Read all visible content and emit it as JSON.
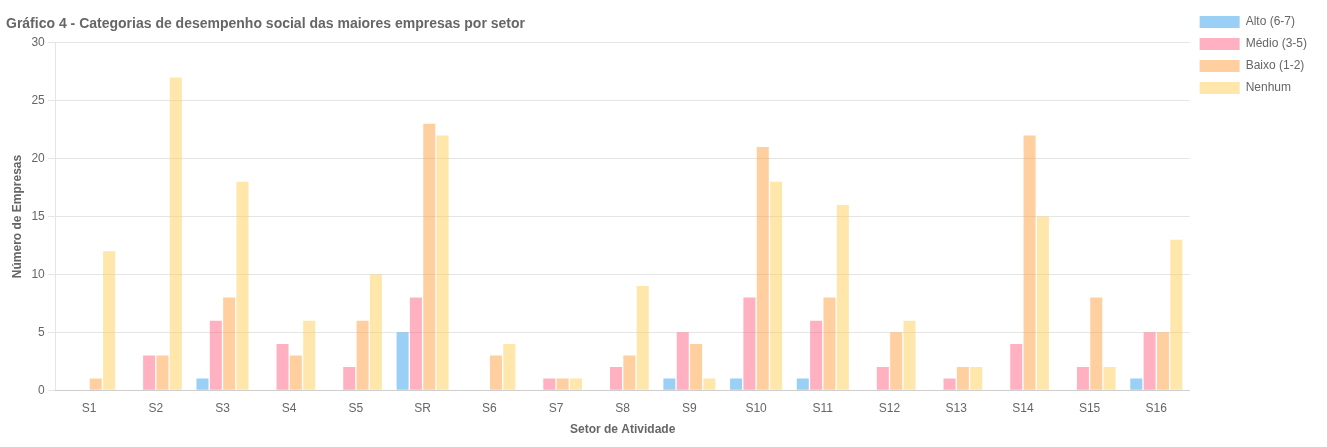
{
  "chart_data": {
    "type": "bar",
    "title": "Gráfico 4 - Categorias de desempenho social das maiores empresas por setor",
    "xlabel": "Setor de Atividade",
    "ylabel": "Número de Empresas",
    "categories": [
      "S1",
      "S2",
      "S3",
      "S4",
      "S5",
      "SR",
      "S6",
      "S7",
      "S8",
      "S9",
      "S10",
      "S11",
      "S12",
      "S13",
      "S14",
      "S15",
      "S16"
    ],
    "series": [
      {
        "name": "Alto (6-7)",
        "values": [
          0,
          0,
          1,
          0,
          0,
          5,
          0,
          0,
          0,
          1,
          1,
          1,
          0,
          0,
          0,
          0,
          1
        ]
      },
      {
        "name": "Médio (3-5)",
        "values": [
          0,
          3,
          6,
          4,
          2,
          8,
          0,
          1,
          2,
          5,
          8,
          6,
          2,
          1,
          4,
          2,
          5
        ]
      },
      {
        "name": "Baixo (1-2)",
        "values": [
          1,
          3,
          8,
          3,
          6,
          23,
          3,
          1,
          3,
          4,
          21,
          8,
          5,
          2,
          22,
          8,
          5
        ]
      },
      {
        "name": "Nenhum",
        "values": [
          12,
          27,
          18,
          6,
          10,
          22,
          4,
          1,
          9,
          1,
          18,
          16,
          6,
          2,
          15,
          2,
          13
        ]
      }
    ],
    "ylim": [
      0,
      30
    ],
    "yticks": [
      0,
      5,
      10,
      15,
      20,
      25,
      30
    ],
    "grid": "y",
    "legend": "right"
  }
}
